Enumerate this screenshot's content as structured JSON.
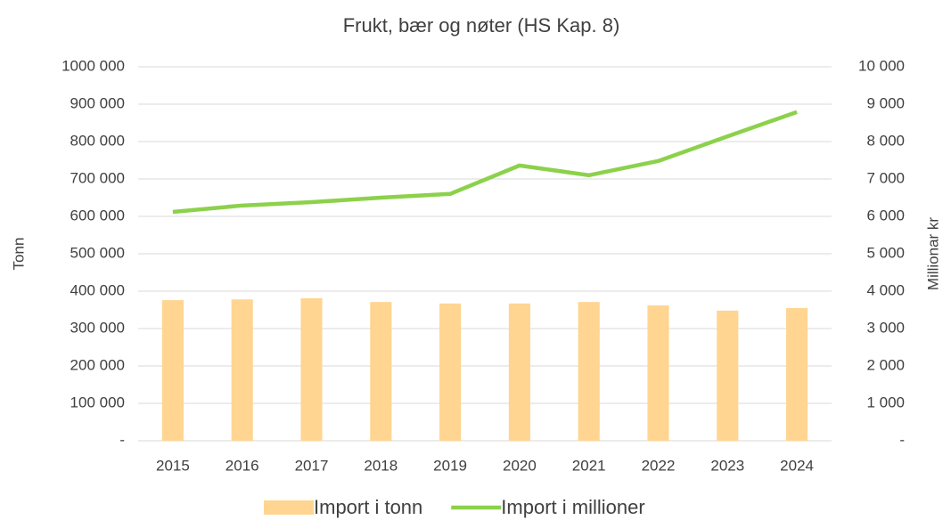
{
  "chart_data": {
    "type": "bar",
    "title": "Frukt, bær og nøter  (HS Kap. 8)",
    "ylabel": "Tonn",
    "y2label": "Millionar kr",
    "categories": [
      "2015",
      "2016",
      "2017",
      "2018",
      "2019",
      "2020",
      "2021",
      "2022",
      "2023",
      "2024"
    ],
    "series": [
      {
        "name": "Import i tonn",
        "type": "bar",
        "color": "#ffd591",
        "values": [
          376000,
          378000,
          381000,
          371000,
          367000,
          367000,
          371000,
          362000,
          348000,
          355000
        ]
      },
      {
        "name": "Import i millioner",
        "type": "line",
        "axis": "y2",
        "color": "#8cd14b",
        "values": [
          6120,
          6290,
          6380,
          6500,
          6600,
          7360,
          7100,
          7480,
          8140,
          8790
        ]
      }
    ],
    "ylim": [
      0,
      1000000
    ],
    "yticks": [
      {
        "value": 0,
        "label": "-"
      },
      {
        "value": 100000,
        "label": "100 000"
      },
      {
        "value": 200000,
        "label": "200 000"
      },
      {
        "value": 300000,
        "label": "300 000"
      },
      {
        "value": 400000,
        "label": "400 000"
      },
      {
        "value": 500000,
        "label": "500 000"
      },
      {
        "value": 600000,
        "label": "600 000"
      },
      {
        "value": 700000,
        "label": "700 000"
      },
      {
        "value": 800000,
        "label": "800 000"
      },
      {
        "value": 900000,
        "label": "900 000"
      },
      {
        "value": 1000000,
        "label": "1000 000"
      }
    ],
    "y2lim": [
      0,
      10000
    ],
    "y2ticks": [
      {
        "value": 0,
        "label": "-"
      },
      {
        "value": 1000,
        "label": "1 000"
      },
      {
        "value": 2000,
        "label": "2 000"
      },
      {
        "value": 3000,
        "label": "3 000"
      },
      {
        "value": 4000,
        "label": "4 000"
      },
      {
        "value": 5000,
        "label": "5 000"
      },
      {
        "value": 6000,
        "label": "6 000"
      },
      {
        "value": 7000,
        "label": "7 000"
      },
      {
        "value": 8000,
        "label": "8 000"
      },
      {
        "value": 9000,
        "label": "9 000"
      },
      {
        "value": 10000,
        "label": "10 000"
      }
    ],
    "grid": true
  }
}
